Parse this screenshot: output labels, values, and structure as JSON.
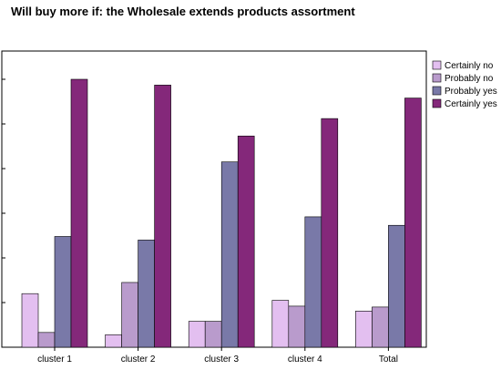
{
  "chart_data": {
    "type": "bar",
    "title": "Will buy more if: the Wholesale extends products assortment",
    "xlabel": "",
    "ylabel": "",
    "categories": [
      "cluster 1",
      "cluster 2",
      "cluster 3",
      "cluster 4",
      "Total"
    ],
    "ylim": [
      0,
      60
    ],
    "grid": false,
    "legend_position": "right",
    "series": [
      {
        "name": "Certainly no",
        "color": "#e3bff0",
        "values": [
          12,
          2.8,
          5.8,
          10.5,
          8.1
        ]
      },
      {
        "name": "Probably no",
        "color": "#b99bcc",
        "values": [
          3.3,
          14.5,
          5.8,
          9.2,
          9.0
        ]
      },
      {
        "name": "Probably yes",
        "color": "#7979a8",
        "values": [
          24.8,
          24.0,
          41.5,
          29.2,
          27.3
        ]
      },
      {
        "name": "Certainly yes",
        "color": "#84287a",
        "values": [
          60.0,
          58.7,
          47.3,
          51.2,
          55.8
        ]
      }
    ]
  }
}
